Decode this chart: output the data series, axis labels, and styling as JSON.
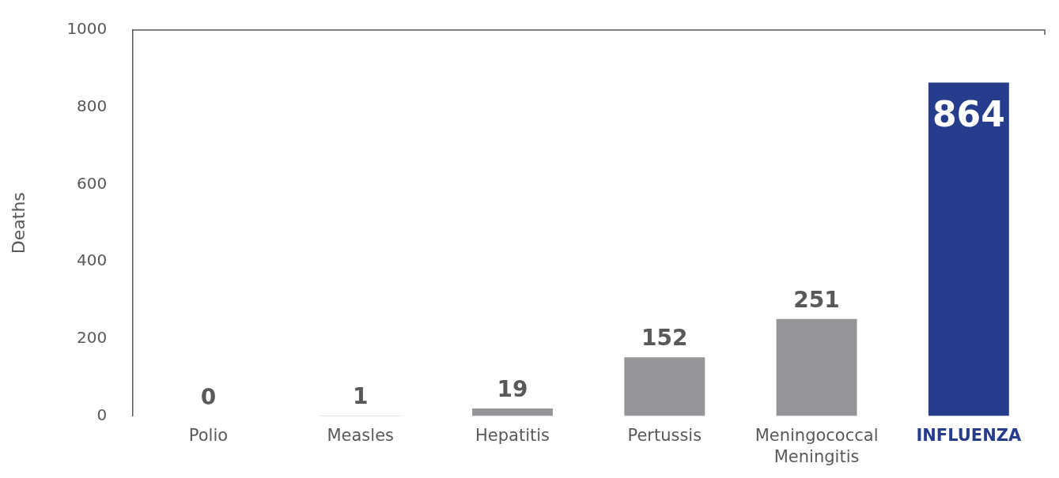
{
  "chart_data": {
    "type": "bar",
    "ylabel": "Deaths",
    "categories": [
      "Polio",
      "Measles",
      "Hepatitis",
      "Pertussis",
      "Meningococcal Meningitis",
      "INFLUENZA"
    ],
    "values": [
      0,
      1,
      19,
      152,
      251,
      864
    ],
    "colors": [
      "#939598",
      "#939598",
      "#939598",
      "#939598",
      "#939598",
      "#253d8c"
    ],
    "ylim": [
      0,
      1000
    ],
    "yticks": [
      0,
      200,
      400,
      600,
      800,
      1000
    ],
    "grid": false,
    "legend": false,
    "data_labels": true
  }
}
